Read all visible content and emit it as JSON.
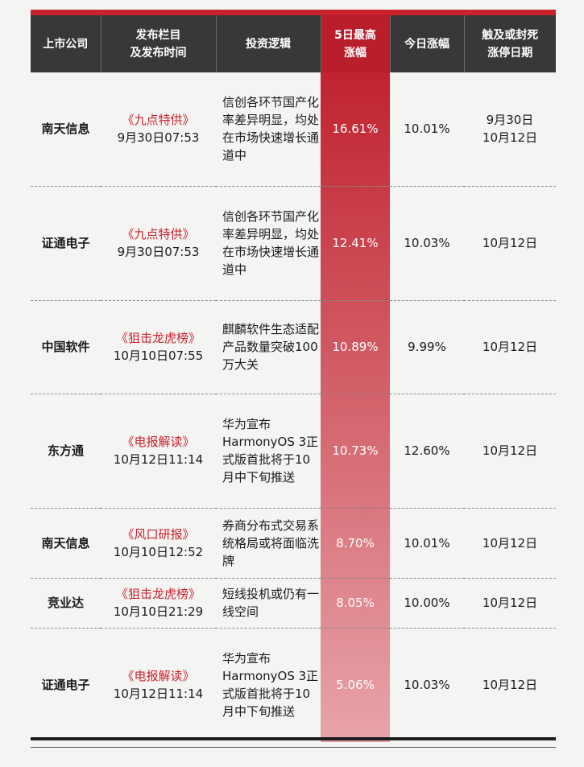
{
  "headers": {
    "company": "上市公司",
    "column_line1": "发布栏目",
    "column_line2": "及发布时间",
    "logic": "投资逻辑",
    "gain_line1": "5日最高",
    "gain_line2": "涨幅",
    "today": "今日涨幅",
    "date_line1": "触及或封死",
    "date_line2": "涨停日期"
  },
  "colors": {
    "accent": "#c8222d",
    "header_bg": "#383838",
    "gain_gradient_top": "#c0232f",
    "gain_gradient_bottom": "#e8a4aa"
  },
  "rows": [
    {
      "company": "南天信息",
      "column": "《九点特供》",
      "time": "9月30日07:53",
      "logic": "信创各环节国产化率差异明显，均处在市场快速增长通道中",
      "gain": "16.61%",
      "today": "10.01%",
      "date1": "9月30日",
      "date2": "10月12日"
    },
    {
      "company": "证通电子",
      "column": "《九点特供》",
      "time": "9月30日07:53",
      "logic": "信创各环节国产化率差异明显，均处在市场快速增长通道中",
      "gain": "12.41%",
      "today": "10.03%",
      "date1": "10月12日",
      "date2": ""
    },
    {
      "company": "中国软件",
      "column": "《狙击龙虎榜》",
      "time": "10月10日07:55",
      "logic": "麒麟软件生态适配产品数量突破100万大关",
      "gain": "10.89%",
      "today": "9.99%",
      "date1": "10月12日",
      "date2": ""
    },
    {
      "company": "东方通",
      "column": "《电报解读》",
      "time": "10月12日11:14",
      "logic": "华为宣布HarmonyOS 3正式版首批将于10月中下旬推送",
      "gain": "10.73%",
      "today": "12.60%",
      "date1": "10月12日",
      "date2": ""
    },
    {
      "company": "南天信息",
      "column": "《风口研报》",
      "time": "10月10日12:52",
      "logic": "券商分布式交易系统格局或将面临洗牌",
      "gain": "8.70%",
      "today": "10.01%",
      "date1": "10月12日",
      "date2": ""
    },
    {
      "company": "竞业达",
      "column": "《狙击龙虎榜》",
      "time": "10月10日21:29",
      "logic": "短线投机或仍有一线空间",
      "gain": "8.05%",
      "today": "10.00%",
      "date1": "10月12日",
      "date2": ""
    },
    {
      "company": "证通电子",
      "column": "《电报解读》",
      "time": "10月12日11:14",
      "logic": "华为宣布HarmonyOS 3正式版首批将于10月中下旬推送",
      "gain": "5.06%",
      "today": "10.03%",
      "date1": "10月12日",
      "date2": ""
    }
  ]
}
